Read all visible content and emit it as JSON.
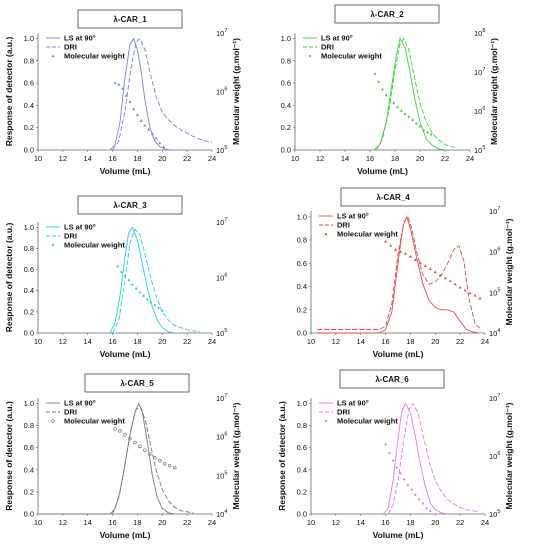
{
  "chart_data": [
    {
      "type": "line",
      "title": "λ-CAR_1",
      "color": "#7b7fe0",
      "xlabel": "Volume (mL)",
      "ylabel": "Response of detector (a.u.)",
      "y2label": "Molecular weight (g.mol⁻¹)",
      "xlim": [
        10,
        24
      ],
      "ylim": [
        0,
        1.05
      ],
      "xticks": [
        10,
        12,
        14,
        16,
        18,
        20,
        22,
        24
      ],
      "yticks": [
        0.0,
        0.2,
        0.4,
        0.6,
        0.8,
        1.0
      ],
      "y2lim_exp": [
        5,
        7
      ],
      "y2ticks": [
        {
          "exp": 5,
          "label": "10",
          "sup": "5"
        },
        {
          "exp": 6,
          "label": "10",
          "sup": "6"
        },
        {
          "exp": 7,
          "label": "10",
          "sup": "7"
        }
      ],
      "legend_position": "top-left",
      "series": [
        {
          "name": "LS at 90°",
          "style": "solid",
          "x": [
            15.8,
            16.2,
            16.6,
            17.0,
            17.4,
            17.7,
            18.0,
            18.3,
            18.6,
            19.0,
            19.4,
            19.8,
            20.2,
            20.6,
            21.0
          ],
          "y": [
            0.0,
            0.05,
            0.25,
            0.65,
            0.95,
            1.0,
            0.9,
            0.7,
            0.45,
            0.2,
            0.08,
            0.03,
            0.01,
            0.0,
            0.0
          ]
        },
        {
          "name": "DRI",
          "style": "dashed",
          "x": [
            16.0,
            16.5,
            17.0,
            17.5,
            17.9,
            18.2,
            18.6,
            19.0,
            19.5,
            20.0,
            20.5,
            21.0,
            21.5,
            22.0,
            22.5,
            23.0,
            23.5,
            24.0
          ],
          "y": [
            0.0,
            0.08,
            0.35,
            0.75,
            0.97,
            1.0,
            0.9,
            0.7,
            0.48,
            0.34,
            0.27,
            0.22,
            0.18,
            0.15,
            0.12,
            0.1,
            0.08,
            0.07
          ]
        },
        {
          "name": "Molecular weight",
          "style": "markers",
          "marker": "triangle",
          "x": [
            16.2,
            16.5,
            16.8,
            17.1,
            17.4,
            17.7,
            18.0,
            18.3,
            18.6,
            18.9,
            19.2,
            19.5,
            19.8,
            20.1
          ],
          "y_exp": [
            6.15,
            6.12,
            6.05,
            5.93,
            5.82,
            5.7,
            5.6,
            5.5,
            5.42,
            5.35,
            5.28,
            5.2,
            5.12,
            5.05
          ]
        }
      ]
    },
    {
      "type": "line",
      "title": "λ-CAR_2",
      "color": "#36d63a",
      "xlabel": "Volume (mL)",
      "ylabel": "",
      "y2label": "Molecular weight (g.mol⁻¹)",
      "xlim": [
        10,
        24
      ],
      "ylim": [
        0,
        1.05
      ],
      "xticks": [
        10,
        12,
        14,
        16,
        18,
        20,
        22,
        24
      ],
      "yticks": [
        0.0,
        0.2,
        0.4,
        0.6,
        0.8,
        1.0
      ],
      "y2lim_exp": [
        5,
        8
      ],
      "y2ticks": [
        {
          "exp": 5,
          "label": "10",
          "sup": "5"
        },
        {
          "exp": 6,
          "label": "10",
          "sup": "6"
        },
        {
          "exp": 7,
          "label": "10",
          "sup": "7"
        },
        {
          "exp": 8,
          "label": "10",
          "sup": "8"
        }
      ],
      "legend_position": "top-left",
      "series": [
        {
          "name": "LS at 90°",
          "style": "solid",
          "x": [
            16.3,
            16.8,
            17.3,
            17.7,
            18.1,
            18.4,
            18.8,
            19.2,
            19.6,
            20.0,
            20.5,
            21.0,
            21.5,
            22.0
          ],
          "y": [
            0.0,
            0.05,
            0.25,
            0.55,
            0.85,
            1.0,
            0.92,
            0.7,
            0.45,
            0.25,
            0.1,
            0.04,
            0.01,
            0.0
          ]
        },
        {
          "name": "DRI",
          "style": "dashed",
          "x": [
            16.5,
            17.0,
            17.5,
            18.0,
            18.4,
            18.7,
            19.1,
            19.5,
            20.0,
            20.5,
            21.0,
            21.5,
            22.0,
            22.5,
            23.0
          ],
          "y": [
            0.0,
            0.1,
            0.35,
            0.72,
            0.95,
            1.0,
            0.9,
            0.68,
            0.42,
            0.25,
            0.15,
            0.09,
            0.05,
            0.03,
            0.02
          ]
        },
        {
          "name": "Molecular weight",
          "style": "markers",
          "marker": "diamond",
          "x": [
            16.4,
            16.7,
            17.0,
            17.3,
            17.6,
            17.9,
            18.2,
            18.5,
            18.8,
            19.1,
            19.4,
            19.7,
            20.0,
            20.3,
            20.6,
            20.9
          ],
          "y_exp": [
            6.95,
            6.75,
            6.55,
            6.4,
            6.3,
            6.2,
            6.1,
            6.0,
            5.92,
            5.85,
            5.77,
            5.68,
            5.6,
            5.5,
            5.45,
            5.4
          ]
        }
      ]
    },
    {
      "type": "line",
      "title": "λ-CAR_3",
      "color": "#25d3d8",
      "xlabel": "Volume (mL)",
      "ylabel": "Response of detector (a.u.)",
      "y2label": "",
      "xlim": [
        10,
        24
      ],
      "ylim": [
        0,
        1.05
      ],
      "xticks": [
        10,
        12,
        14,
        16,
        18,
        20,
        22,
        24
      ],
      "yticks": [
        0.0,
        0.2,
        0.4,
        0.6,
        0.8,
        1.0
      ],
      "y2lim_exp": [
        5,
        7
      ],
      "y2ticks": [
        {
          "exp": 5,
          "label": "10",
          "sup": "5"
        },
        {
          "exp": 6,
          "label": "10",
          "sup": "6"
        },
        {
          "exp": 7,
          "label": "10",
          "sup": "7"
        }
      ],
      "legend_position": "top-left",
      "series": [
        {
          "name": "LS at 90°",
          "style": "solid",
          "x": [
            15.8,
            16.2,
            16.6,
            17.0,
            17.3,
            17.6,
            18.0,
            18.4,
            18.8,
            19.2,
            19.6,
            20.0,
            20.5,
            21.0
          ],
          "y": [
            0.0,
            0.1,
            0.35,
            0.72,
            0.95,
            1.0,
            0.88,
            0.65,
            0.42,
            0.25,
            0.12,
            0.05,
            0.01,
            0.0
          ]
        },
        {
          "name": "DRI",
          "style": "dashed",
          "x": [
            16.0,
            16.5,
            17.0,
            17.4,
            17.8,
            18.2,
            18.6,
            19.0,
            19.5,
            20.0,
            20.5,
            21.0,
            21.5,
            22.0,
            22.5,
            23.0
          ],
          "y": [
            0.0,
            0.12,
            0.5,
            0.85,
            0.98,
            0.93,
            0.75,
            0.55,
            0.35,
            0.2,
            0.12,
            0.07,
            0.05,
            0.03,
            0.02,
            0.01
          ]
        },
        {
          "name": "Molecular weight",
          "style": "markers",
          "marker": "diamond",
          "x": [
            16.4,
            16.7,
            17.0,
            17.3,
            17.6,
            17.9,
            18.2,
            18.5,
            18.8,
            19.1,
            19.4,
            19.7,
            20.0
          ],
          "y_exp": [
            6.2,
            6.1,
            6.02,
            5.95,
            5.87,
            5.8,
            5.73,
            5.67,
            5.6,
            5.55,
            5.5,
            5.45,
            5.4
          ]
        }
      ]
    },
    {
      "type": "line",
      "title": "λ-CAR_4",
      "color": "#e14a47",
      "xlabel": "Volume (mL)",
      "ylabel": "",
      "y2label": "Molecular weight (g.mol⁻¹)",
      "xlim": [
        10,
        24
      ],
      "ylim": [
        0,
        1.05
      ],
      "xticks": [
        10,
        12,
        14,
        16,
        18,
        20,
        22,
        24
      ],
      "yticks": [
        0.0,
        0.2,
        0.4,
        0.6,
        0.8,
        1.0
      ],
      "y2lim_exp": [
        4,
        7
      ],
      "y2ticks": [
        {
          "exp": 4,
          "label": "10",
          "sup": "4"
        },
        {
          "exp": 5,
          "label": "10",
          "sup": "5"
        },
        {
          "exp": 6,
          "label": "10",
          "sup": "6"
        },
        {
          "exp": 7,
          "label": "10",
          "sup": "7"
        }
      ],
      "legend_position": "top-left",
      "series": [
        {
          "name": "LS at 90°",
          "style": "solid",
          "x": [
            10.5,
            15.5,
            16.0,
            16.5,
            17.0,
            17.4,
            17.7,
            18.0,
            18.5,
            19.0,
            19.5,
            20.0,
            20.5,
            21.0,
            21.5,
            22.0,
            22.5,
            23.0,
            23.5
          ],
          "y": [
            0.0,
            0.0,
            0.03,
            0.18,
            0.6,
            0.92,
            1.0,
            0.9,
            0.65,
            0.42,
            0.28,
            0.22,
            0.2,
            0.2,
            0.18,
            0.1,
            0.03,
            0.01,
            0.0
          ]
        },
        {
          "name": "DRI",
          "style": "dashed",
          "x": [
            10.5,
            15.5,
            16.0,
            16.5,
            17.0,
            17.5,
            17.8,
            18.1,
            18.5,
            19.0,
            19.5,
            20.0,
            20.5,
            21.0,
            21.5,
            21.9,
            22.3,
            22.7,
            23.2,
            23.7
          ],
          "y": [
            0.03,
            0.03,
            0.06,
            0.25,
            0.68,
            0.96,
            1.0,
            0.9,
            0.7,
            0.5,
            0.42,
            0.44,
            0.5,
            0.6,
            0.72,
            0.75,
            0.62,
            0.3,
            0.08,
            0.03
          ]
        },
        {
          "name": "Molecular weight",
          "style": "markers",
          "marker": "triangle",
          "x": [
            16.0,
            16.4,
            16.8,
            17.2,
            17.6,
            18.0,
            18.4,
            18.8,
            19.2,
            19.6,
            20.0,
            20.4,
            20.8,
            21.2,
            21.6,
            22.0,
            22.4,
            22.8,
            23.2,
            23.6
          ],
          "y_exp": [
            6.25,
            6.15,
            6.05,
            6.0,
            5.95,
            5.88,
            5.8,
            5.72,
            5.65,
            5.58,
            5.5,
            5.42,
            5.35,
            5.28,
            5.2,
            5.12,
            5.05,
            4.98,
            4.92,
            4.85
          ]
        }
      ]
    },
    {
      "type": "line",
      "title": "λ-CAR_5",
      "color": "#777777",
      "xlabel": "Volume (mL)",
      "ylabel": "Response of detector (a.u.)",
      "y2label": "Molecular weight (g.mol⁻¹)",
      "xlim": [
        10,
        24
      ],
      "ylim": [
        0,
        1.05
      ],
      "xticks": [
        10,
        12,
        14,
        16,
        18,
        20,
        22,
        24
      ],
      "yticks": [
        0.0,
        0.2,
        0.4,
        0.6,
        0.8,
        1.0
      ],
      "y2lim_exp": [
        4,
        7
      ],
      "y2ticks": [
        {
          "exp": 4,
          "label": "10",
          "sup": "4"
        },
        {
          "exp": 5,
          "label": "10",
          "sup": "5"
        },
        {
          "exp": 6,
          "label": "10",
          "sup": "6"
        },
        {
          "exp": 7,
          "label": "10",
          "sup": "7"
        }
      ],
      "legend_position": "top-left",
      "series": [
        {
          "name": "LS at 90°",
          "style": "solid",
          "x": [
            10.0,
            15.8,
            16.2,
            16.6,
            17.0,
            17.4,
            17.8,
            18.1,
            18.4,
            18.8,
            19.2,
            19.6,
            20.0,
            20.5,
            21.0
          ],
          "y": [
            0.0,
            0.0,
            0.05,
            0.2,
            0.45,
            0.72,
            0.92,
            1.0,
            0.92,
            0.65,
            0.35,
            0.15,
            0.05,
            0.01,
            0.0
          ]
        },
        {
          "name": "DRI",
          "style": "dashed",
          "x": [
            16.0,
            16.5,
            17.0,
            17.5,
            17.9,
            18.3,
            18.7,
            19.1,
            19.5,
            20.0,
            20.5,
            21.0,
            21.5,
            22.0,
            22.5
          ],
          "y": [
            0.0,
            0.15,
            0.45,
            0.78,
            0.95,
            0.96,
            0.82,
            0.6,
            0.4,
            0.22,
            0.12,
            0.06,
            0.03,
            0.02,
            0.01
          ]
        },
        {
          "name": "Molecular weight",
          "style": "markers",
          "marker": "circle",
          "x": [
            16.2,
            16.6,
            17.0,
            17.4,
            17.8,
            18.2,
            18.6,
            19.0,
            19.4,
            19.8,
            20.2,
            20.6,
            21.0
          ],
          "y_exp": [
            6.2,
            6.15,
            6.05,
            5.95,
            5.85,
            5.75,
            5.65,
            5.55,
            5.45,
            5.38,
            5.3,
            5.25,
            5.2
          ]
        }
      ]
    },
    {
      "type": "line",
      "title": "λ-CAR_6",
      "color": "#e57be0",
      "xlabel": "Volume (mL)",
      "ylabel": "Response of detector (a.u.)",
      "y2label": "Molecular weight (g.mol⁻¹)",
      "xlim": [
        10,
        24
      ],
      "ylim": [
        0,
        1.05
      ],
      "xticks": [
        10,
        12,
        14,
        16,
        18,
        20,
        22,
        24
      ],
      "yticks": [
        0.0,
        0.2,
        0.4,
        0.6,
        0.8,
        1.0
      ],
      "y2lim_exp": [
        5,
        7
      ],
      "y2ticks": [
        {
          "exp": 5,
          "label": "10",
          "sup": "5"
        },
        {
          "exp": 6,
          "label": "10",
          "sup": "6"
        },
        {
          "exp": 7,
          "label": "10",
          "sup": "7"
        }
      ],
      "legend_position": "top-left",
      "series": [
        {
          "name": "LS at 90°",
          "style": "solid",
          "x": [
            15.8,
            16.2,
            16.6,
            17.0,
            17.3,
            17.6,
            18.0,
            18.4,
            18.8,
            19.2,
            19.6,
            20.0,
            20.5,
            21.0
          ],
          "y": [
            0.0,
            0.05,
            0.3,
            0.68,
            0.93,
            1.0,
            0.92,
            0.7,
            0.45,
            0.25,
            0.1,
            0.04,
            0.01,
            0.0
          ]
        },
        {
          "name": "DRI",
          "style": "dashed",
          "x": [
            16.2,
            16.6,
            17.0,
            17.5,
            17.9,
            18.2,
            18.6,
            19.0,
            19.5,
            20.0,
            20.5,
            21.0,
            21.5,
            22.0,
            22.5,
            23.0,
            23.5
          ],
          "y": [
            0.0,
            0.08,
            0.3,
            0.7,
            0.95,
            1.0,
            0.92,
            0.72,
            0.48,
            0.3,
            0.2,
            0.13,
            0.09,
            0.06,
            0.04,
            0.03,
            0.02
          ]
        },
        {
          "name": "Molecular weight",
          "style": "markers",
          "marker": "diamond",
          "x": [
            16.0,
            16.3,
            16.6,
            16.9,
            17.2,
            17.5,
            17.8,
            18.1,
            18.4,
            18.7,
            19.0,
            19.3,
            19.6
          ],
          "y_exp": [
            6.2,
            6.05,
            5.92,
            5.8,
            5.7,
            5.6,
            5.5,
            5.42,
            5.33,
            5.25,
            5.18,
            5.1,
            5.05
          ]
        }
      ]
    }
  ]
}
